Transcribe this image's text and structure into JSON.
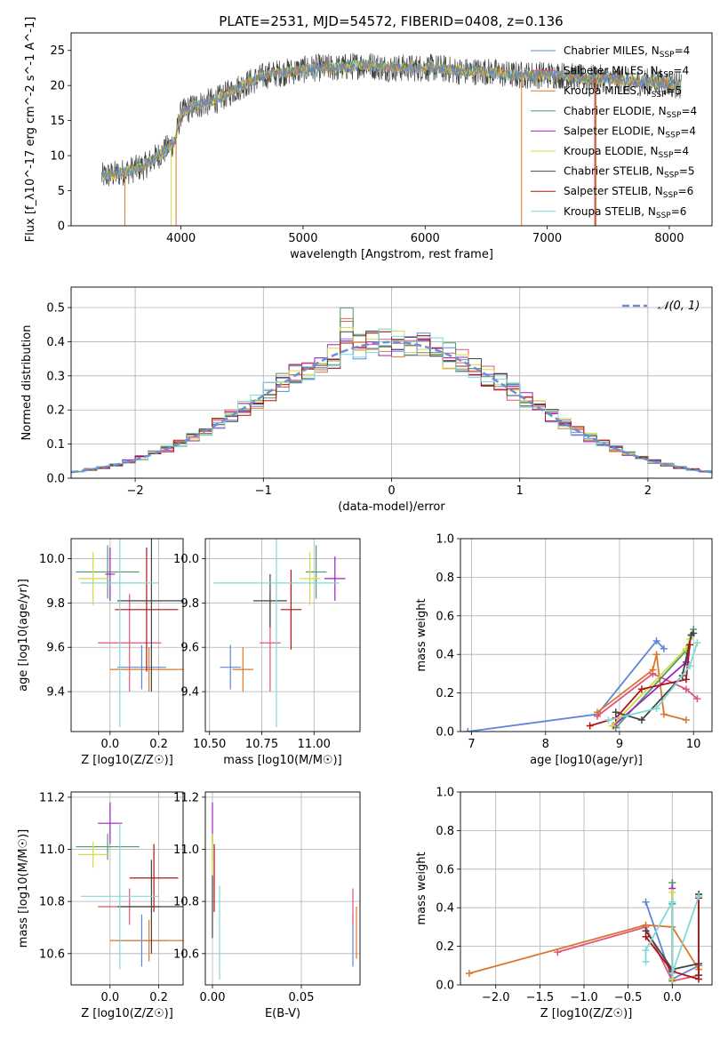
{
  "figure": {
    "title": "PLATE=2531, MJD=54572, FIBERID=0408, z=0.136",
    "colors": {
      "cmiles": "#5f86d6",
      "smiles": "#e0557a",
      "kmiles": "#d9782d",
      "celodie": "#4c9a6a",
      "selodie": "#a020c0",
      "kelodie": "#d6d942",
      "cstelib": "#444444",
      "sstelib": "#b01515",
      "kstelib": "#7fd9d9",
      "model_line": "#6a8fd3"
    }
  },
  "chart_data": [
    {
      "id": "spectrum",
      "type": "line",
      "title": "PLATE=2531, MJD=54572, FIBERID=0408, z=0.136",
      "xlabel": "wavelength [Angstrom, rest frame]",
      "ylabel": "Flux [f_λ10^-17 erg cm^-2 s^-1 A^-1]",
      "xlim": [
        3100,
        8350
      ],
      "ylim": [
        0,
        27.5
      ],
      "xticks": [
        4000,
        5000,
        6000,
        7000,
        8000
      ],
      "yticks": [
        0,
        5,
        10,
        15,
        20,
        25
      ],
      "grid": false,
      "legend_position": "right",
      "legend": [
        {
          "label": "Chabrier MILES, N_SSP=4",
          "color": "cmiles"
        },
        {
          "label": "Salpeter MILES, N_SSP=4",
          "color": "smiles"
        },
        {
          "label": "Kroupa MILES, N_SSP=5",
          "color": "kmiles"
        },
        {
          "label": "Chabrier ELODIE, N_SSP=4",
          "color": "celodie"
        },
        {
          "label": "Salpeter ELODIE, N_SSP=4",
          "color": "selodie"
        },
        {
          "label": "Kroupa ELODIE, N_SSP=4",
          "color": "kelodie"
        },
        {
          "label": "Chabrier STELIB, N_SSP=5",
          "color": "cstelib"
        },
        {
          "label": "Salpeter STELIB, N_SSP=6",
          "color": "sstelib"
        },
        {
          "label": "Kroupa STELIB, N_SSP=6",
          "color": "kstelib"
        }
      ],
      "continuum": {
        "x": [
          3350,
          3500,
          3700,
          3850,
          3950,
          4000,
          4100,
          4300,
          4500,
          4700,
          4900,
          5100,
          5300,
          5500,
          5700,
          5900,
          6100,
          6300,
          6500,
          6700,
          6900,
          7100,
          7300,
          7500,
          7700,
          7900,
          8100
        ],
        "y": [
          7,
          7.5,
          8.5,
          10.5,
          12,
          16,
          17,
          18,
          20,
          21.5,
          22,
          22.5,
          22.5,
          23,
          22.5,
          22.5,
          22.5,
          22,
          22,
          21.5,
          21.5,
          21.5,
          21,
          21,
          20.5,
          20.5,
          20
        ]
      }
    },
    {
      "id": "residuals",
      "type": "histogram",
      "xlabel": "(data-model)/error",
      "ylabel": "Normed distribution",
      "xlim": [
        -2.5,
        2.5
      ],
      "ylim": [
        0,
        0.56
      ],
      "xticks": [
        -2,
        -1,
        0,
        1,
        2
      ],
      "yticks": [
        0.0,
        0.1,
        0.2,
        0.3,
        0.4,
        0.5
      ],
      "grid": true,
      "legend_position": "top-right",
      "legend": [
        {
          "label": "𝒩(0, 1)",
          "color": "model_line"
        }
      ],
      "bin_width": 0.1
    },
    {
      "id": "age-Z",
      "type": "scatter",
      "xlabel": "Z [log10(Z/Z☉)]",
      "ylabel": "age  [log10(age/yr)]",
      "xlim": [
        -0.16,
        0.3
      ],
      "ylim": [
        9.22,
        10.09
      ],
      "xticks": [
        0.0,
        0.2
      ],
      "yticks": [
        9.4,
        9.6,
        9.8,
        10.0
      ],
      "grid": true,
      "points": [
        {
          "c": "cmiles",
          "x": 0.13,
          "xerr": 0.1,
          "y": 9.51,
          "yerr": 0.1
        },
        {
          "c": "smiles",
          "x": 0.08,
          "xerr": 0.13,
          "y": 9.62,
          "yerr": 0.22
        },
        {
          "c": "kmiles",
          "x": 0.16,
          "xerr": 0.16,
          "y": 9.5,
          "yerr": 0.1
        },
        {
          "c": "celodie",
          "x": -0.01,
          "xerr": 0.13,
          "y": 9.94,
          "yerr": 0.12
        },
        {
          "c": "selodie",
          "x": 0.0,
          "xerr": 0.02,
          "y": 9.93,
          "yerr": 0.12
        },
        {
          "c": "kelodie",
          "x": -0.07,
          "xerr": 0.06,
          "y": 9.91,
          "yerr": 0.12
        },
        {
          "c": "cstelib",
          "x": 0.17,
          "xerr": 0.14,
          "y": 9.81,
          "yerr": 0.41
        },
        {
          "c": "sstelib",
          "x": 0.15,
          "xerr": 0.13,
          "y": 9.77,
          "yerr": 0.28
        },
        {
          "c": "kstelib",
          "x": 0.04,
          "xerr": 0.16,
          "y": 9.89,
          "yerr": 0.65
        }
      ]
    },
    {
      "id": "age-mass",
      "type": "scatter",
      "xlabel": "mass [log10(M/M☉)]",
      "ylabel": "",
      "xlim": [
        10.48,
        11.22
      ],
      "ylim": [
        9.22,
        10.09
      ],
      "xticks": [
        10.5,
        10.75,
        11.0
      ],
      "yticks": [
        9.4,
        9.6,
        9.8,
        10.0
      ],
      "grid": true,
      "points": [
        {
          "c": "cmiles",
          "x": 10.6,
          "xerr": 0.05,
          "y": 9.51,
          "yerr": 0.1
        },
        {
          "c": "smiles",
          "x": 10.79,
          "xerr": 0.05,
          "y": 9.62,
          "yerr": 0.22
        },
        {
          "c": "kmiles",
          "x": 10.66,
          "xerr": 0.05,
          "y": 9.5,
          "yerr": 0.1
        },
        {
          "c": "celodie",
          "x": 11.01,
          "xerr": 0.05,
          "y": 9.94,
          "yerr": 0.12
        },
        {
          "c": "selodie",
          "x": 11.1,
          "xerr": 0.05,
          "y": 9.91,
          "yerr": 0.1
        },
        {
          "c": "kelodie",
          "x": 10.98,
          "xerr": 0.05,
          "y": 9.91,
          "yerr": 0.12
        },
        {
          "c": "cstelib",
          "x": 10.79,
          "xerr": 0.08,
          "y": 9.81,
          "yerr": 0.12
        },
        {
          "c": "sstelib",
          "x": 10.89,
          "xerr": 0.05,
          "y": 9.77,
          "yerr": 0.18
        },
        {
          "c": "kstelib",
          "x": 10.82,
          "xerr": 0.3,
          "y": 9.89,
          "yerr": 0.65
        }
      ]
    },
    {
      "id": "weight-age",
      "type": "line",
      "xlabel": "age  [log10(age/yr)]",
      "ylabel": "mass weight",
      "xlim": [
        6.85,
        10.25
      ],
      "ylim": [
        0,
        1
      ],
      "xticks": [
        7,
        8,
        9,
        10
      ],
      "yticks": [
        0.0,
        0.2,
        0.4,
        0.6,
        0.8,
        1.0
      ],
      "grid": true,
      "series": [
        {
          "c": "cmiles",
          "x": [
            6.95,
            8.7,
            9.5,
            9.6
          ],
          "y": [
            0.0,
            0.09,
            0.47,
            0.43
          ]
        },
        {
          "c": "smiles",
          "x": [
            8.7,
            9.45,
            9.9,
            10.05
          ],
          "y": [
            0.08,
            0.3,
            0.22,
            0.17
          ]
        },
        {
          "c": "kmiles",
          "x": [
            8.7,
            9.45,
            9.5,
            9.6,
            9.9
          ],
          "y": [
            0.1,
            0.32,
            0.4,
            0.09,
            0.06
          ]
        },
        {
          "c": "celodie",
          "x": [
            8.95,
            9.9,
            10.0
          ],
          "y": [
            0.02,
            0.42,
            0.53
          ]
        },
        {
          "c": "selodie",
          "x": [
            8.92,
            9.9,
            9.97
          ],
          "y": [
            0.03,
            0.36,
            0.5
          ]
        },
        {
          "c": "kelodie",
          "x": [
            8.9,
            9.9,
            9.95
          ],
          "y": [
            0.03,
            0.43,
            0.48
          ]
        },
        {
          "c": "cstelib",
          "x": [
            8.95,
            9.3,
            9.85,
            9.97,
            10.0
          ],
          "y": [
            0.1,
            0.06,
            0.29,
            0.5,
            0.51
          ]
        },
        {
          "c": "sstelib",
          "x": [
            8.6,
            8.95,
            9.3,
            9.9,
            9.95
          ],
          "y": [
            0.03,
            0.07,
            0.22,
            0.27,
            0.45
          ]
        },
        {
          "c": "kstelib",
          "x": [
            8.85,
            9.5,
            9.95,
            10.05
          ],
          "y": [
            0.06,
            0.12,
            0.34,
            0.46
          ]
        }
      ]
    },
    {
      "id": "mass-Z",
      "type": "scatter",
      "xlabel": "Z [log10(Z/Z☉)]",
      "ylabel": "mass [log10(M/M☉)]",
      "xlim": [
        -0.16,
        0.3
      ],
      "ylim": [
        10.48,
        11.22
      ],
      "xticks": [
        0.0,
        0.2
      ],
      "yticks": [
        10.6,
        10.8,
        11.0,
        11.2
      ],
      "grid": true,
      "points": [
        {
          "c": "cmiles",
          "x": 0.13,
          "xerr": 0.1,
          "y": 10.65,
          "yerr": 0.1
        },
        {
          "c": "smiles",
          "x": 0.08,
          "xerr": 0.13,
          "y": 10.78,
          "yerr": 0.07
        },
        {
          "c": "kmiles",
          "x": 0.16,
          "xerr": 0.16,
          "y": 10.65,
          "yerr": 0.08
        },
        {
          "c": "celodie",
          "x": -0.01,
          "xerr": 0.13,
          "y": 11.01,
          "yerr": 0.05
        },
        {
          "c": "selodie",
          "x": 0.0,
          "xerr": 0.05,
          "y": 11.1,
          "yerr": 0.08
        },
        {
          "c": "kelodie",
          "x": -0.07,
          "xerr": 0.06,
          "y": 10.98,
          "yerr": 0.05
        },
        {
          "c": "cstelib",
          "x": 0.17,
          "xerr": 0.14,
          "y": 10.78,
          "yerr": 0.18
        },
        {
          "c": "sstelib",
          "x": 0.18,
          "xerr": 0.1,
          "y": 10.89,
          "yerr": 0.13
        },
        {
          "c": "kstelib",
          "x": 0.04,
          "xerr": 0.16,
          "y": 10.82,
          "yerr": 0.28
        }
      ]
    },
    {
      "id": "mass-ebv",
      "type": "scatter",
      "xlabel": "E(B-V)",
      "ylabel": "",
      "xlim": [
        -0.004,
        0.083
      ],
      "ylim": [
        10.48,
        11.22
      ],
      "xticks": [
        0.0,
        0.05
      ],
      "yticks": [
        10.6,
        10.8,
        11.0,
        11.2
      ],
      "grid": true,
      "points": [
        {
          "c": "cmiles",
          "x": 0.079,
          "xerr": 0,
          "y": 10.65,
          "yerr": 0.1
        },
        {
          "c": "smiles",
          "x": 0.079,
          "xerr": 0,
          "y": 10.78,
          "yerr": 0.07
        },
        {
          "c": "kmiles",
          "x": 0.081,
          "xerr": 0,
          "y": 10.68,
          "yerr": 0.1
        },
        {
          "c": "celodie",
          "x": 0.0,
          "xerr": 0,
          "y": 11.01,
          "yerr": 0.05
        },
        {
          "c": "selodie",
          "x": 0.0,
          "xerr": 0,
          "y": 11.1,
          "yerr": 0.08
        },
        {
          "c": "kelodie",
          "x": 0.0,
          "xerr": 0,
          "y": 10.98,
          "yerr": 0.08
        },
        {
          "c": "cstelib",
          "x": 0.0,
          "xerr": 0,
          "y": 10.78,
          "yerr": 0.12
        },
        {
          "c": "sstelib",
          "x": 0.001,
          "xerr": 0,
          "y": 10.89,
          "yerr": 0.13
        },
        {
          "c": "kstelib",
          "x": 0.004,
          "xerr": 0,
          "y": 10.68,
          "yerr": 0.18
        }
      ]
    },
    {
      "id": "weight-Z",
      "type": "line",
      "xlabel": "Z [log10(Z/Z☉)]",
      "ylabel": "mass weight",
      "xlim": [
        -2.4,
        0.45
      ],
      "ylim": [
        0,
        1
      ],
      "xticks": [
        -2.0,
        -1.5,
        -1.0,
        -0.5,
        0.0
      ],
      "yticks": [
        0.0,
        0.2,
        0.4,
        0.6,
        0.8,
        1.0
      ],
      "grid": true,
      "series": [
        {
          "c": "cmiles",
          "x": [
            -0.3,
            0.0,
            0.3,
            0.3
          ],
          "y": [
            0.43,
            0.03,
            0.1,
            0.47
          ]
        },
        {
          "c": "smiles",
          "x": [
            -1.3,
            -0.3,
            0.0,
            0.3
          ],
          "y": [
            0.17,
            0.3,
            0.02,
            0.05
          ]
        },
        {
          "c": "kmiles",
          "x": [
            -2.3,
            -0.3,
            0.0,
            0.3
          ],
          "y": [
            0.06,
            0.31,
            0.3,
            0.08
          ]
        },
        {
          "c": "celodie",
          "x": [
            0.0,
            0.0,
            0.0
          ],
          "y": [
            0.53,
            0.42,
            0.02
          ]
        },
        {
          "c": "selodie",
          "x": [
            0.0,
            0.0
          ],
          "y": [
            0.5,
            0.03
          ]
        },
        {
          "c": "kelodie",
          "x": [
            0.0,
            0.0,
            0.0
          ],
          "y": [
            0.48,
            0.43,
            0.03
          ]
        },
        {
          "c": "cstelib",
          "x": [
            -0.3,
            0.0,
            0.3,
            0.3,
            0.3
          ],
          "y": [
            0.28,
            0.08,
            0.11,
            0.47,
            0.05
          ]
        },
        {
          "c": "sstelib",
          "x": [
            -0.3,
            0.0,
            0.3,
            0.3
          ],
          "y": [
            0.25,
            0.07,
            0.03,
            0.45
          ]
        },
        {
          "c": "kstelib",
          "x": [
            -0.3,
            -0.3,
            0.0,
            0.0,
            0.3
          ],
          "y": [
            0.12,
            0.18,
            0.43,
            0.06,
            0.46
          ]
        }
      ]
    }
  ]
}
